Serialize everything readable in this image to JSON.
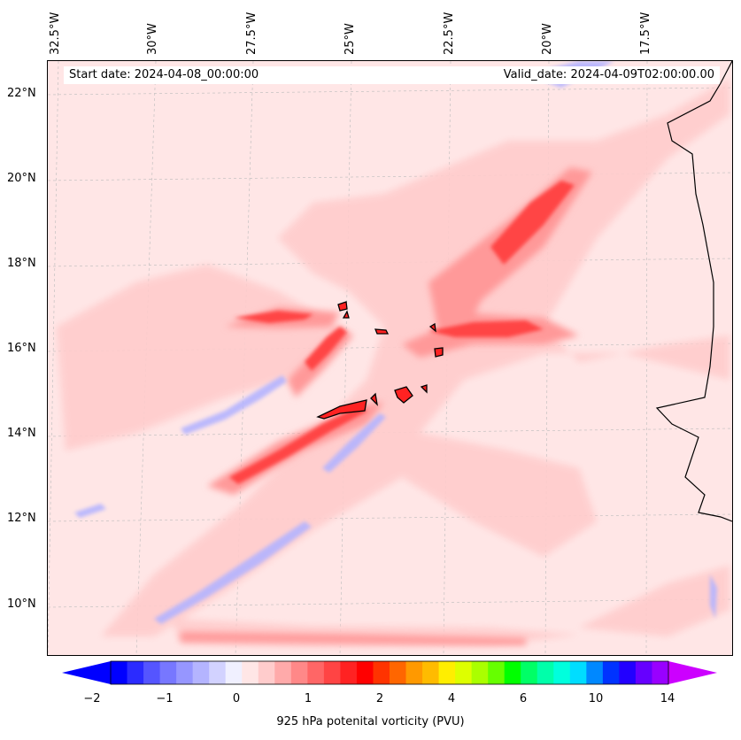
{
  "map": {
    "longitude_labels": [
      "32.5°W",
      "30°W",
      "27.5°W",
      "25°W",
      "22.5°W",
      "20°W",
      "17.5°W"
    ],
    "latitude_labels": [
      "22°N",
      "20°N",
      "18°N",
      "16°N",
      "14°N",
      "12°N",
      "10°N"
    ],
    "start_date_text": "Start date: 2024-04-08_00:00:00",
    "valid_date_text": "Valid_date: 2024-04-09T02:00:00.00",
    "background_color": "#ffe6e6"
  },
  "colorbar": {
    "label": "925 hPa potenital vorticity (PVU)",
    "tick_labels": [
      "−2",
      "−1",
      "0",
      "1",
      "2",
      "4",
      "6",
      "10",
      "14"
    ],
    "colors": [
      "#0000ff",
      "#2b2bff",
      "#5555ff",
      "#7777ff",
      "#9696ff",
      "#b4b4ff",
      "#d2d2ff",
      "#f0f0ff",
      "#ffe6e6",
      "#ffcccc",
      "#ffaaaa",
      "#ff8888",
      "#ff6666",
      "#ff4444",
      "#ff2222",
      "#ff0000",
      "#ff3300",
      "#ff6600",
      "#ff9900",
      "#ffbb00",
      "#ffee00",
      "#ddff00",
      "#aaff00",
      "#66ff00",
      "#00ff00",
      "#00ff66",
      "#00ffaa",
      "#00ffdd",
      "#00ddff",
      "#0088ff",
      "#0033ff",
      "#2200ff",
      "#6600ff",
      "#9900ff"
    ],
    "extend_min_color": "#0000ff",
    "extend_max_color": "#cc00ff"
  }
}
